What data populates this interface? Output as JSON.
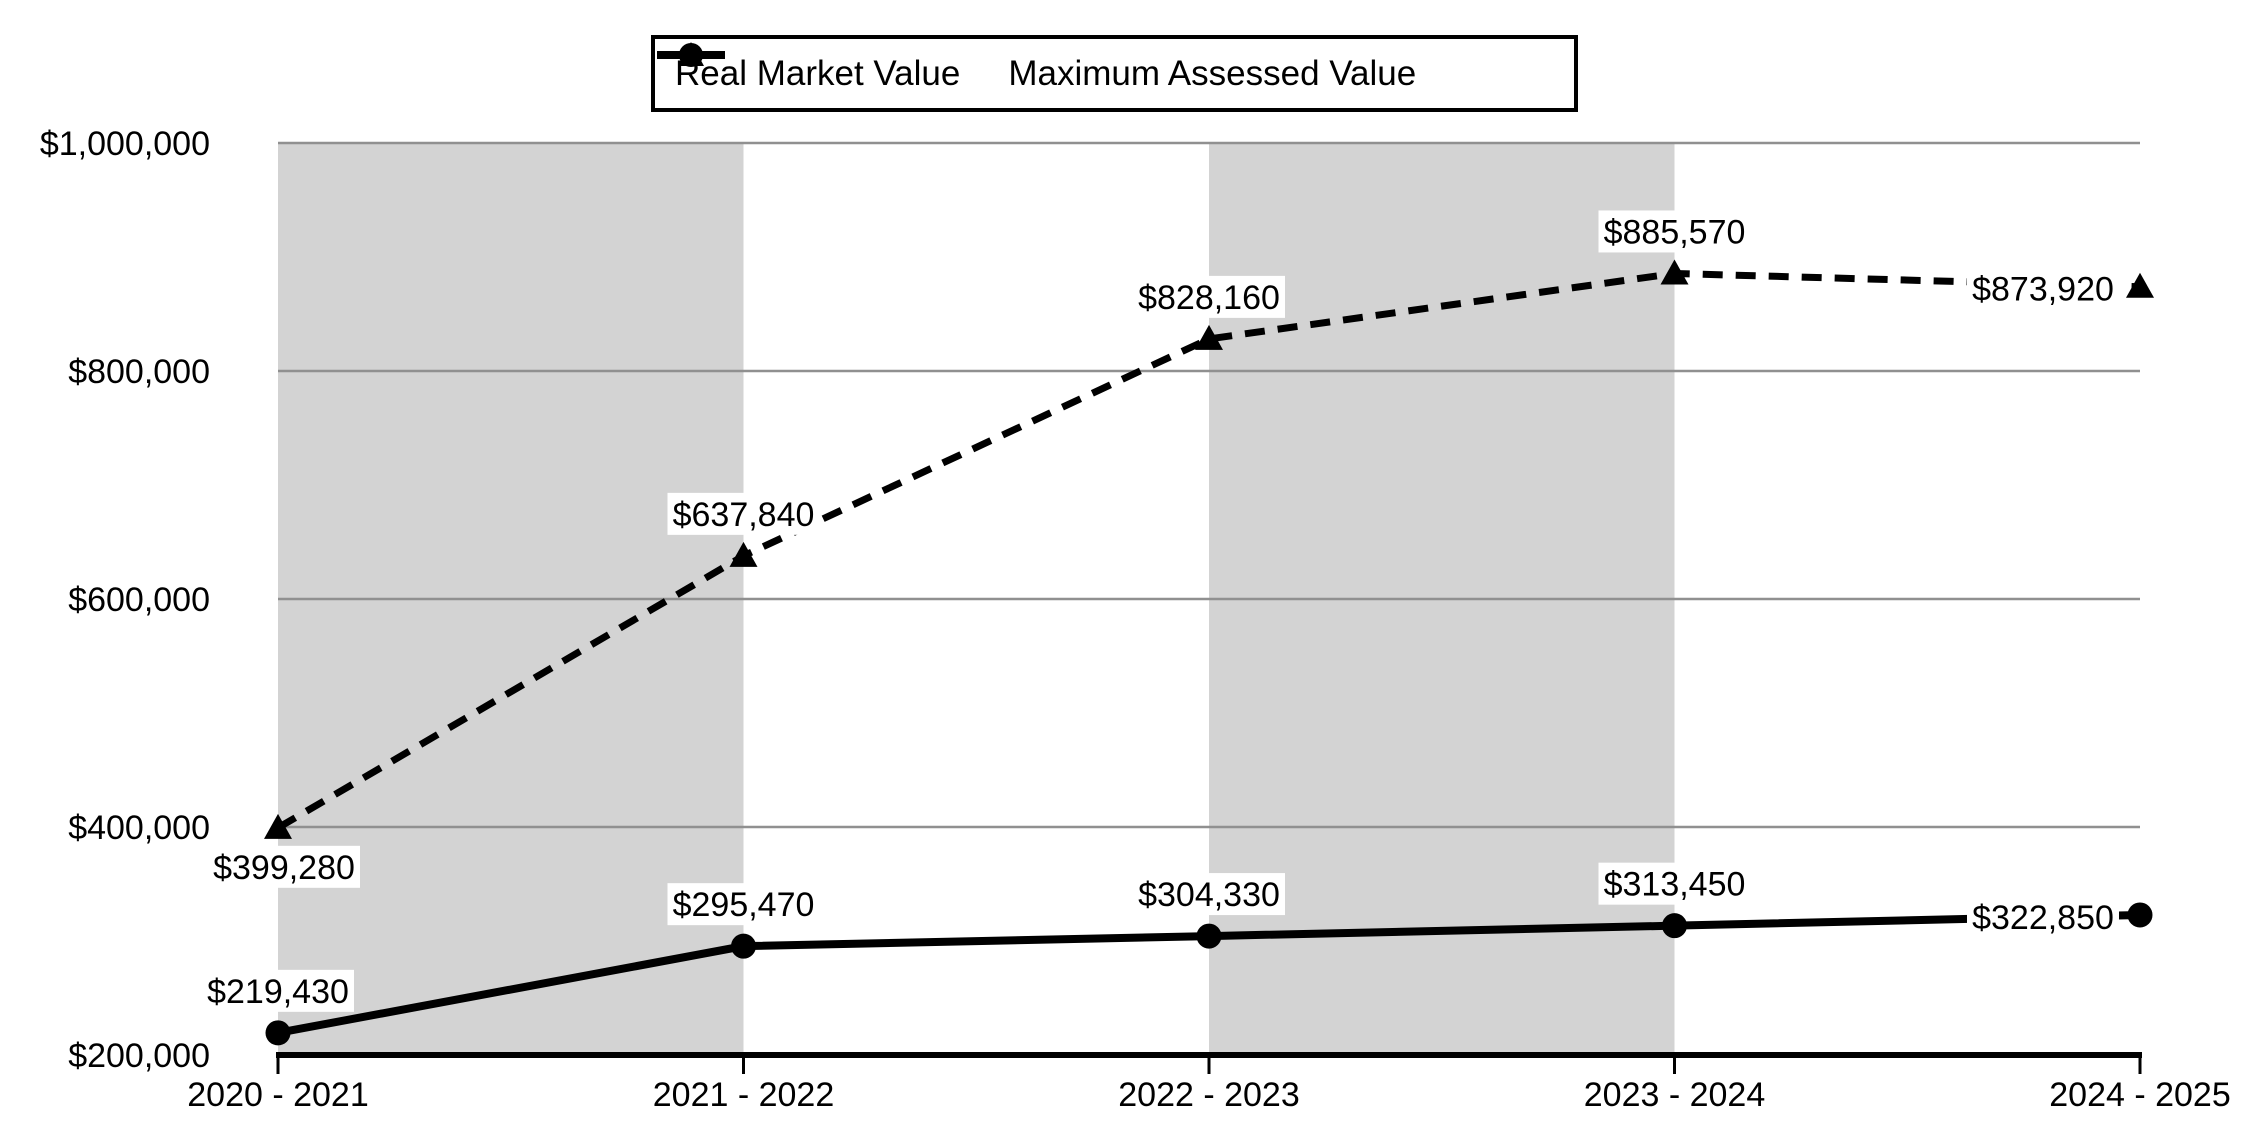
{
  "chart_data": {
    "type": "line",
    "categories": [
      "2020 - 2021",
      "2021 - 2022",
      "2022 - 2023",
      "2023 - 2024",
      "2024 - 2025"
    ],
    "series": [
      {
        "name": "Real Market Value",
        "line_style": "dashed",
        "marker": "triangle",
        "values": [
          399280,
          637840,
          828160,
          885570,
          873920
        ],
        "labels": [
          "$399,280",
          "$637,840",
          "$828,160",
          "$885,570",
          "$873,920"
        ],
        "label_positions": [
          "below",
          "above",
          "above",
          "above",
          "left"
        ]
      },
      {
        "name": "Maximum Assessed Value",
        "line_style": "solid",
        "marker": "circle",
        "values": [
          219430,
          295470,
          304330,
          313450,
          322850
        ],
        "labels": [
          "$219,430",
          "$295,470",
          "$304,330",
          "$313,450",
          "$322,850"
        ],
        "label_positions": [
          "above",
          "above",
          "above",
          "above",
          "left"
        ]
      }
    ],
    "xlabel": "",
    "ylabel": "",
    "title": "",
    "ylim": [
      200000,
      1000000
    ],
    "ytick_step": 200000,
    "ytick_labels": [
      "$200,000",
      "$400,000",
      "$600,000",
      "$800,000",
      "$1,000,000"
    ],
    "grid": "horizontal",
    "legend_position": "top-center",
    "shaded_spans": [
      [
        0,
        1
      ],
      [
        2,
        3
      ]
    ],
    "colors": {
      "series": "#000000",
      "band": "#D3D3D3",
      "gridline": "#909090",
      "axis": "#000000",
      "label_bg": "#FFFFFF",
      "background": "#FFFFFF"
    }
  }
}
